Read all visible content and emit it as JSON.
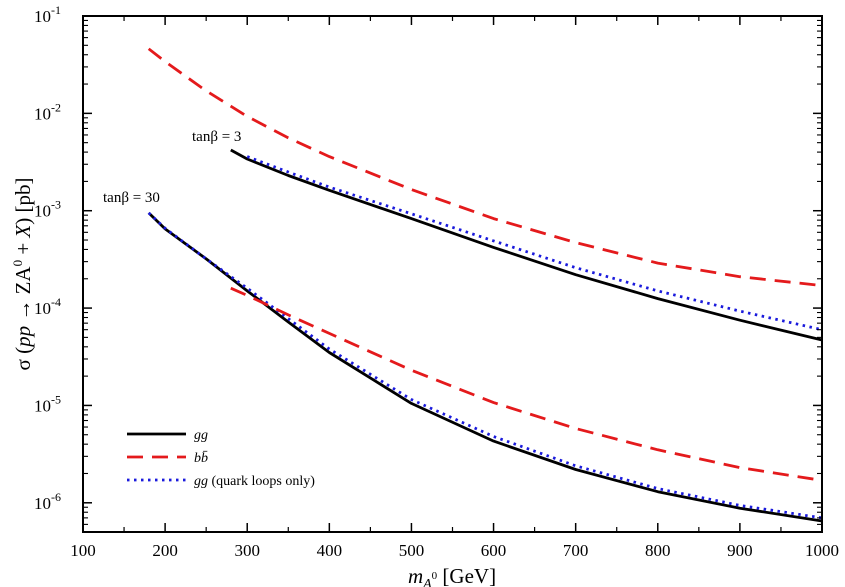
{
  "chart_data": {
    "type": "line",
    "title": "",
    "xlabel_var": "m",
    "xlabel_sub": "A",
    "xlabel_sub_sup": "0",
    "xlabel_unit": " [GeV]",
    "ylabel_sigma": "σ",
    "ylabel_open": " (",
    "ylabel_pp": "pp",
    "ylabel_arrow": " → ",
    "ylabel_ZA": "ZA",
    "ylabel_sup": "0",
    "ylabel_plus": " + ",
    "ylabel_X": "X",
    "ylabel_close": ") [pb]",
    "xlim": [
      100,
      1000
    ],
    "ylim_log10": [
      -6.3,
      -1
    ],
    "xticks": [
      100,
      200,
      300,
      400,
      500,
      600,
      700,
      800,
      900,
      1000
    ],
    "yticks_exp": [
      -1,
      -2,
      -3,
      -4,
      -5,
      -6
    ],
    "ytick_base": "10",
    "annotations": [
      {
        "text": "tanβ = 3",
        "x": 225,
        "y": 0.0055
      },
      {
        "text": "tanβ = 30",
        "x": 120,
        "y": 0.0012
      }
    ],
    "legend": [
      {
        "label_main": "gg",
        "label_rest": "",
        "style": "solid",
        "color": "#000000"
      },
      {
        "label_main": "bb̄",
        "label_rest": "",
        "style": "dashed",
        "color": "#e41a1c"
      },
      {
        "label_main": "gg",
        "label_rest": " (quark loops only)",
        "style": "dotted",
        "color": "#1a1adc"
      }
    ],
    "series": [
      {
        "name": "gg tanβ=3",
        "style": "solid",
        "color": "#000000",
        "x": [
          280,
          300,
          350,
          400,
          500,
          600,
          700,
          800,
          900,
          1000
        ],
        "y": [
          0.0042,
          0.0034,
          0.0023,
          0.00162,
          0.00083,
          0.00042,
          0.00022,
          0.000125,
          7.5e-05,
          4.7e-05
        ]
      },
      {
        "name": "gg (quark loops only) tanβ=3",
        "style": "dotted",
        "color": "#1a1adc",
        "x": [
          300,
          350,
          400,
          500,
          600,
          700,
          800,
          900,
          1000
        ],
        "y": [
          0.0036,
          0.0025,
          0.00175,
          0.00093,
          0.00049,
          0.00026,
          0.00015,
          9.3e-05,
          6e-05
        ]
      },
      {
        "name": "bb̄ tanβ=3",
        "style": "dashed",
        "color": "#e41a1c",
        "x": [
          180,
          200,
          250,
          300,
          350,
          400,
          500,
          600,
          700,
          800,
          900,
          1000
        ],
        "y": [
          0.046,
          0.034,
          0.017,
          0.0093,
          0.0056,
          0.0036,
          0.00165,
          0.00083,
          0.00047,
          0.00029,
          0.00021,
          0.00017
        ]
      },
      {
        "name": "gg tanβ=30",
        "style": "solid",
        "color": "#000000",
        "x": [
          180,
          200,
          250,
          300,
          350,
          400,
          500,
          600,
          700,
          800,
          900,
          1000
        ],
        "y": [
          0.00095,
          0.00065,
          0.00032,
          0.00015,
          7.2e-05,
          3.5e-05,
          1.05e-05,
          4.3e-06,
          2.2e-06,
          1.3e-06,
          8.8e-07,
          6.5e-07
        ]
      },
      {
        "name": "gg (quark loops only) tanβ=30",
        "style": "dotted",
        "color": "#1a1adc",
        "x": [
          180,
          200,
          250,
          300,
          350,
          400,
          500,
          600,
          700,
          800,
          900,
          1000
        ],
        "y": [
          0.00095,
          0.00066,
          0.00032,
          0.00016,
          7.8e-05,
          3.8e-05,
          1.15e-05,
          4.8e-06,
          2.4e-06,
          1.4e-06,
          9.4e-07,
          7e-07
        ]
      },
      {
        "name": "bb̄ tanβ=30",
        "style": "dashed",
        "color": "#e41a1c",
        "x": [
          280,
          300,
          350,
          400,
          500,
          600,
          700,
          800,
          900,
          1000
        ],
        "y": [
          0.00016,
          0.000135,
          8.5e-05,
          5.5e-05,
          2.3e-05,
          1.07e-05,
          5.8e-06,
          3.5e-06,
          2.3e-06,
          1.7e-06
        ]
      }
    ]
  }
}
